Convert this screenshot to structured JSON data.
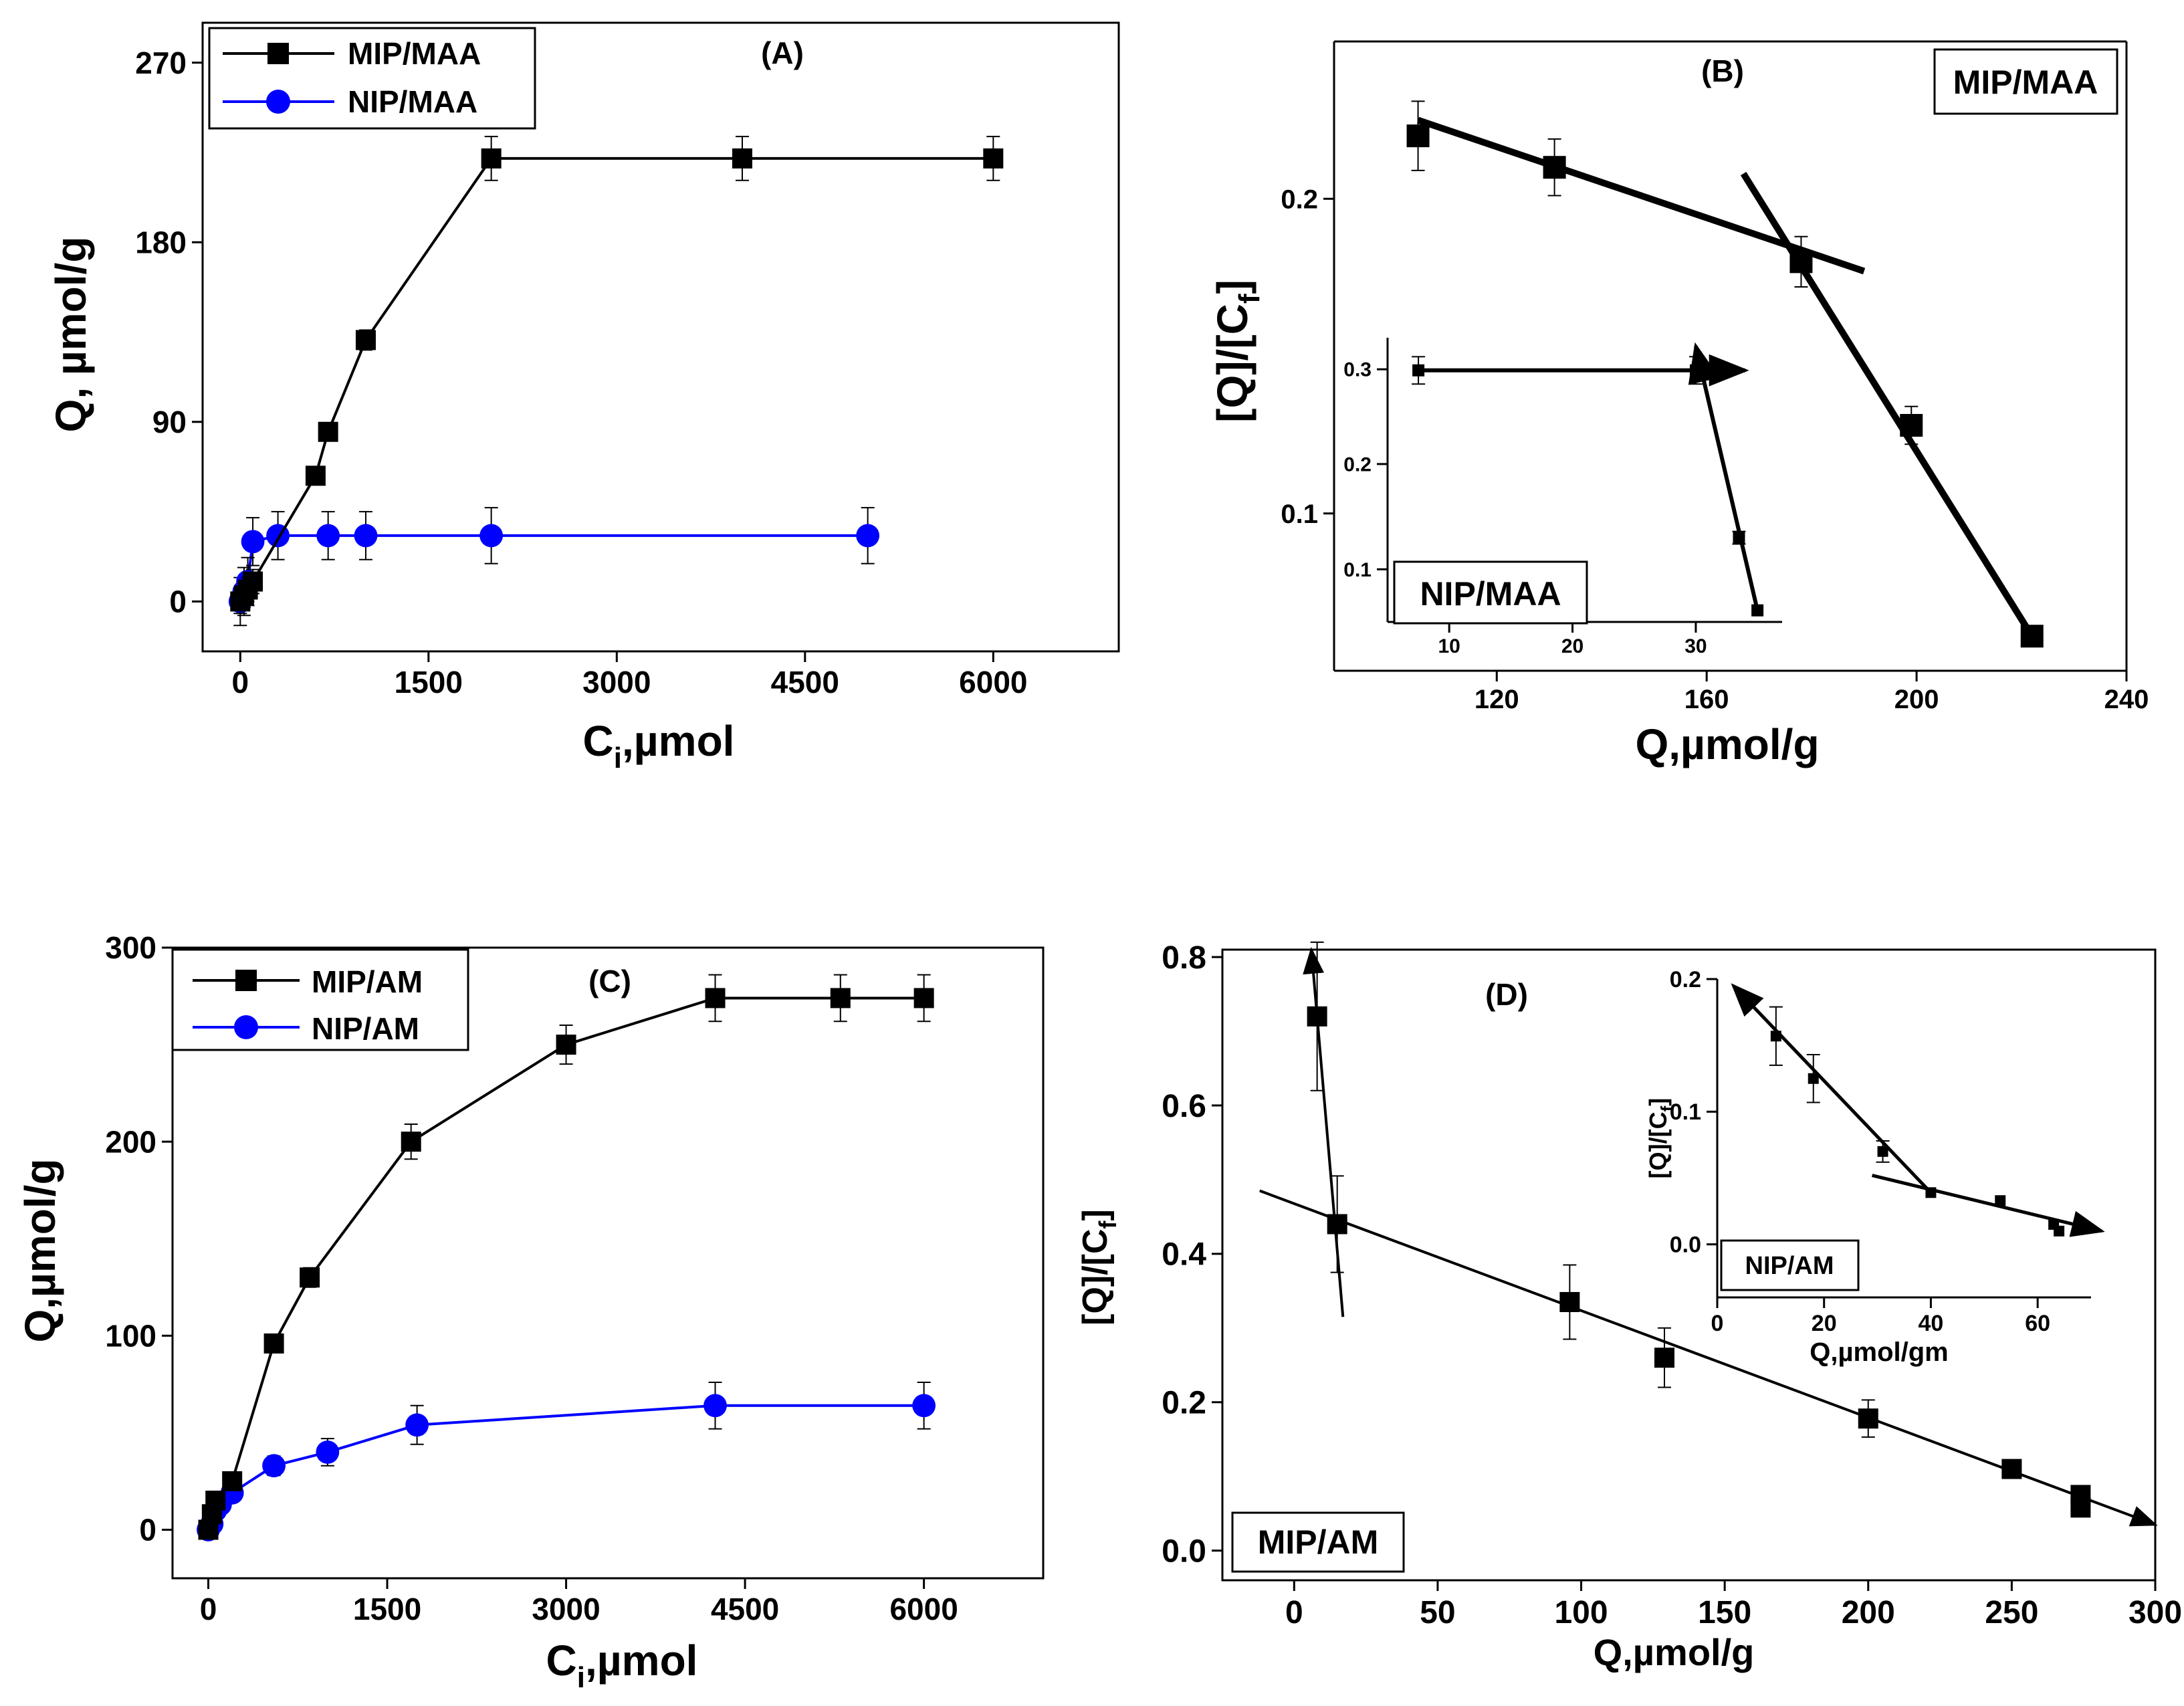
{
  "chart_data": [
    {
      "id": "A",
      "type": "line",
      "title": "(A)",
      "xlabel_main": "C",
      "xlabel_sub": "i",
      "xlabel_tail": ",µmol",
      "ylabel": "Q, µmol/g",
      "xlim": [
        -300,
        7000
      ],
      "ylim": [
        -25,
        290
      ],
      "xticks": [
        0,
        1500,
        3000,
        4500,
        6000
      ],
      "xtick_labels": [
        "0",
        "1500",
        "3000",
        "4500",
        "6000"
      ],
      "yticks": [
        0,
        90,
        180,
        270
      ],
      "ytick_labels": [
        "0",
        "90",
        "180",
        "270"
      ],
      "legend_position": "top-left",
      "series": [
        {
          "name": "MIP/MAA",
          "marker": "square",
          "color": "#000000",
          "x": [
            0,
            30,
            60,
            100,
            600,
            700,
            1000,
            2000,
            4000,
            6000
          ],
          "y": [
            0,
            3,
            6,
            10,
            63,
            85,
            131,
            222,
            222,
            222
          ],
          "err": [
            6,
            6,
            6,
            6,
            3,
            3,
            5,
            11,
            11,
            11
          ]
        },
        {
          "name": "NIP/MAA",
          "marker": "circle",
          "color": "#0000ff",
          "x": [
            0,
            30,
            60,
            100,
            300,
            700,
            1000,
            2000,
            5000
          ],
          "y": [
            0,
            5,
            10,
            30,
            33,
            33,
            33,
            33,
            33
          ],
          "err": [
            12,
            12,
            12,
            12,
            12,
            12,
            12,
            14,
            14
          ]
        }
      ]
    },
    {
      "id": "B",
      "type": "scatter",
      "title": "(B)",
      "xlabel": "Q,µmol/g",
      "ylabel_main": "[Q]/[C",
      "ylabel_sub": "f",
      "ylabel_tail": "]",
      "badge": "MIP/MAA",
      "xlim": [
        89,
        240
      ],
      "ylim": [
        0.05,
        0.25
      ],
      "xticks": [
        120,
        160,
        200,
        240
      ],
      "xtick_labels": [
        "120",
        "160",
        "200",
        "240"
      ],
      "yticks": [
        0.1,
        0.2
      ],
      "ytick_labels": [
        "0.1",
        "0.2"
      ],
      "series": [
        {
          "name": "MIP/MAA",
          "marker": "square",
          "color": "#000000",
          "x": [
            105,
            131,
            178,
            199,
            222
          ],
          "y": [
            0.22,
            0.21,
            0.18,
            0.128,
            0.061
          ],
          "err": [
            0.011,
            0.009,
            0.008,
            0.006,
            0
          ]
        }
      ],
      "fit_lines": [
        {
          "from": [
            105,
            0.225
          ],
          "to": [
            190,
            0.177
          ]
        },
        {
          "from": [
            167,
            0.208
          ],
          "to": [
            222,
            0.061
          ]
        }
      ],
      "inset": {
        "badge": "NIP/MAA",
        "xlim": [
          5,
          37
        ],
        "ylim": [
          0.05,
          0.32
        ],
        "xticks": [
          10,
          20,
          30
        ],
        "xtick_labels": [
          "10",
          "20",
          "30"
        ],
        "yticks": [
          0.1,
          0.2,
          0.3
        ],
        "ytick_labels": [
          "0.1",
          "0.2",
          "0.3"
        ],
        "ytick_positions": [
          0.1,
          0.2,
          0.29
        ],
        "points": {
          "x": [
            7.5,
            30,
            33.5,
            35
          ],
          "y": [
            0.289,
            0.289,
            0.13,
            0.061
          ],
          "err": [
            0.013,
            0.013,
            0.006,
            0
          ]
        },
        "fit_lines": [
          {
            "from": [
              7.5,
              0.289
            ],
            "to": [
              34,
              0.289
            ],
            "arrow": true
          },
          {
            "from": [
              35,
              0.061
            ],
            "to": [
              30,
              0.312
            ],
            "arrow": true
          }
        ]
      }
    },
    {
      "id": "C",
      "type": "line",
      "title": "(C)",
      "xlabel_main": "C",
      "xlabel_sub": "i",
      "xlabel_tail": ",µmol",
      "ylabel": "Q,µmol/g",
      "xlim": [
        -300,
        7000
      ],
      "ylim": [
        -25,
        300
      ],
      "xticks": [
        0,
        1500,
        3000,
        4500,
        6000
      ],
      "xtick_labels": [
        "0",
        "1500",
        "3000",
        "4500",
        "6000"
      ],
      "yticks": [
        0,
        100,
        200,
        300
      ],
      "ytick_labels": [
        "0",
        "100",
        "200",
        "300"
      ],
      "legend_position": "top-left",
      "series": [
        {
          "name": "MIP/AM",
          "marker": "square",
          "color": "#000000",
          "x": [
            0,
            30,
            60,
            200,
            550,
            850,
            1700,
            3000,
            4250,
            5300,
            6000
          ],
          "y": [
            0,
            8,
            15,
            25,
            96,
            130,
            200,
            250,
            274,
            274,
            274
          ],
          "err": [
            0,
            0,
            0,
            0,
            0,
            5,
            9,
            10,
            12,
            12,
            12
          ]
        },
        {
          "name": "NIP/AM",
          "marker": "circle",
          "color": "#0000ff",
          "x": [
            0,
            30,
            60,
            100,
            200,
            550,
            1000,
            1750,
            4250,
            6000
          ],
          "y": [
            0,
            3,
            10,
            13,
            19,
            33,
            40,
            54,
            64,
            64
          ],
          "err": [
            0,
            0,
            0,
            0,
            0,
            5,
            7,
            10,
            12,
            12
          ]
        }
      ]
    },
    {
      "id": "D",
      "type": "scatter",
      "title": "(D)",
      "xlabel": "Q,µmol/g",
      "ylabel_main": "[Q]/[C",
      "ylabel_sub": "f",
      "ylabel_tail": "]",
      "badge": "MIP/AM",
      "xlim": [
        -25,
        300
      ],
      "ylim": [
        -0.04,
        0.81
      ],
      "xticks": [
        0,
        50,
        100,
        150,
        200,
        250,
        300
      ],
      "xtick_labels": [
        "0",
        "50",
        "100",
        "150",
        "200",
        "250",
        "300"
      ],
      "yticks": [
        0,
        0.2,
        0.4,
        0.6,
        0.8
      ],
      "ytick_labels": [
        "0.0",
        "0.2",
        "0.4",
        "0.6",
        "0.8"
      ],
      "series": [
        {
          "name": "MIP/AM",
          "marker": "square",
          "color": "#000000",
          "x": [
            8,
            15,
            96,
            129,
            200,
            250,
            274,
            274
          ],
          "y": [
            0.72,
            0.44,
            0.335,
            0.26,
            0.178,
            0.11,
            0.075,
            0.058
          ],
          "err": [
            0.1,
            0.065,
            0.05,
            0.04,
            0.025,
            0.012,
            0,
            0
          ]
        }
      ],
      "fit_lines": [
        {
          "from": [
            -12,
            0.485
          ],
          "to": [
            300,
            0.035
          ],
          "arrow": true
        },
        {
          "from": [
            17,
            0.315
          ],
          "to": [
            6,
            0.81
          ],
          "arrow": true
        }
      ],
      "inset": {
        "badge": "NIP/AM",
        "xlabel": "Q,µmol/gm",
        "ylabel_main": "[Q]/[C",
        "ylabel_sub": "f",
        "ylabel_tail": "]",
        "xlim": [
          0,
          70
        ],
        "ylim": [
          -0.04,
          0.2
        ],
        "xticks": [
          0,
          20,
          40,
          60
        ],
        "xtick_labels": [
          "0",
          "20",
          "40",
          "60"
        ],
        "yticks": [
          0,
          0.1,
          0.2
        ],
        "ytick_labels": [
          "0.0",
          "0.1",
          "0.2"
        ],
        "points": {
          "x": [
            11,
            18,
            31,
            40,
            53,
            63,
            64
          ],
          "y": [
            0.157,
            0.125,
            0.07,
            0.039,
            0.033,
            0.015,
            0.01
          ],
          "err": [
            0.022,
            0.018,
            0.008,
            0,
            0,
            0,
            0
          ]
        },
        "fit_lines": [
          {
            "from": [
              40,
              0.039
            ],
            "to": [
              3,
              0.195
            ],
            "arrow": true
          },
          {
            "from": [
              29,
              0.052
            ],
            "to": [
              72,
              0.01
            ],
            "arrow": true
          }
        ]
      }
    }
  ]
}
